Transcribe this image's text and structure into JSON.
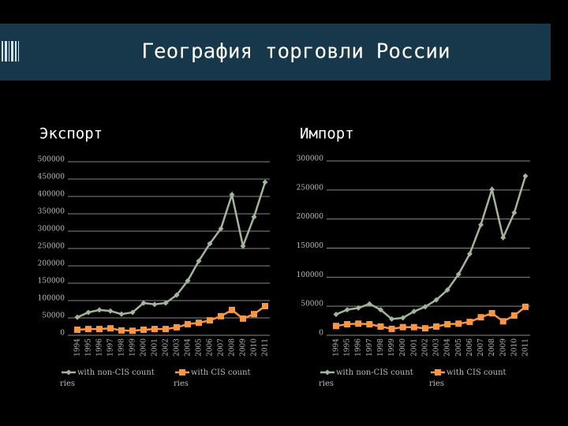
{
  "page_title": "География торговли России",
  "chart_data": [
    {
      "type": "line",
      "title": "Экспорт",
      "x": [
        "1994",
        "1995",
        "1996",
        "1997",
        "1998",
        "1999",
        "2000",
        "2001",
        "2002",
        "2003",
        "2004",
        "2005",
        "2006",
        "2007",
        "2008",
        "2009",
        "2010",
        "2011"
      ],
      "series": [
        {
          "name": "with non-CIS countries",
          "color": "#a3b59a",
          "values": [
            52000,
            66000,
            73000,
            70000,
            61000,
            66000,
            93000,
            89000,
            93000,
            116000,
            157000,
            214000,
            264000,
            307000,
            405000,
            257000,
            341000,
            441000
          ]
        },
        {
          "name": "with CIS countries",
          "color": "#f79646",
          "values": [
            16000,
            18000,
            18000,
            20000,
            14000,
            13000,
            16000,
            18000,
            18000,
            23000,
            32000,
            36000,
            43000,
            55000,
            73000,
            48000,
            61000,
            84000
          ]
        }
      ],
      "ylim": [
        0,
        500000
      ],
      "yticks": [
        0,
        50000,
        100000,
        150000,
        200000,
        250000,
        300000,
        350000,
        400000,
        450000,
        500000
      ],
      "grid": true
    },
    {
      "type": "line",
      "title": "Импорт",
      "x": [
        "1994",
        "1995",
        "1996",
        "1997",
        "1998",
        "1999",
        "2000",
        "2001",
        "2002",
        "2003",
        "2004",
        "2005",
        "2006",
        "2007",
        "2008",
        "2009",
        "2010",
        "2011"
      ],
      "series": [
        {
          "name": "with non-CIS countries",
          "color": "#a3b59a",
          "values": [
            36000,
            44000,
            47000,
            54000,
            44000,
            28000,
            30000,
            41000,
            49000,
            61000,
            78000,
            105000,
            140000,
            190000,
            251000,
            168000,
            211000,
            274000
          ]
        },
        {
          "name": "with CIS countries",
          "color": "#f79646",
          "values": [
            16000,
            19000,
            20000,
            19000,
            15000,
            11000,
            14000,
            14000,
            12000,
            15000,
            19000,
            20000,
            23000,
            31000,
            38000,
            24000,
            34000,
            49000
          ]
        }
      ],
      "ylim": [
        0,
        300000
      ],
      "yticks": [
        0,
        50000,
        100000,
        150000,
        200000,
        250000,
        300000
      ],
      "grid": true
    }
  ]
}
